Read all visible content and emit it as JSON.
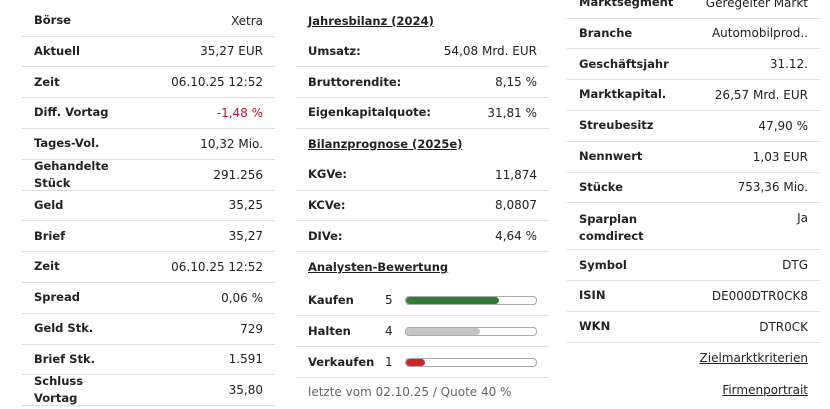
{
  "column1": {
    "rows": [
      {
        "label": "Börse",
        "value": "Xetra"
      },
      {
        "label": "Aktuell",
        "value": "35,27 EUR"
      },
      {
        "label": "Zeit",
        "value": "06.10.25 12:52"
      },
      {
        "label": "Diff. Vortag",
        "value": "-1,48 %",
        "value_color": "#c8102e"
      },
      {
        "label": "Tages-Vol.",
        "value": "10,32 Mio."
      },
      {
        "label": "Gehandelte Stück",
        "value": "291.256"
      },
      {
        "label": "Geld",
        "value": "35,25"
      },
      {
        "label": "Brief",
        "value": "35,27"
      },
      {
        "label": "Zeit",
        "value": "06.10.25 12:52"
      },
      {
        "label": "Spread",
        "value": "0,06 %"
      },
      {
        "label": "Geld Stk.",
        "value": "729"
      },
      {
        "label": "Brief Stk.",
        "value": "1.591"
      },
      {
        "label": "Schluss Vortag",
        "value": "35,80"
      }
    ]
  },
  "column2": {
    "sections": [
      {
        "title": "Jahresbilanz (2024)",
        "rows": [
          {
            "label": "Umsatz:",
            "value": "54,08 Mrd. EUR"
          },
          {
            "label": "Bruttorendite:",
            "value": "8,15 %"
          },
          {
            "label": "Eigenkapitalquote:",
            "value": "31,81 %"
          }
        ]
      },
      {
        "title": "Bilanzprognose (2025e)",
        "rows": [
          {
            "label": "KGVe:",
            "value": "11,874"
          },
          {
            "label": "KCVe:",
            "value": "8,0807"
          },
          {
            "label": "DIVe:",
            "value": "4,64 %"
          }
        ]
      }
    ],
    "analysts": {
      "title": "Analysten-Bewertung",
      "ratings": [
        {
          "label": "Kaufen",
          "count": 5,
          "color": "#2e7d32"
        },
        {
          "label": "Halten",
          "count": 4,
          "color": "#c4c4c4"
        },
        {
          "label": "Verkaufen",
          "count": 1,
          "color": "#c62828"
        }
      ],
      "footnote": "letzte vom 02.10.25 / Quote 40 %"
    }
  },
  "column3": {
    "rows": [
      {
        "label": "Marktsegment",
        "value": "Geregelter Markt"
      },
      {
        "label": "Branche",
        "value": "Automobilprod.."
      },
      {
        "label": "Geschäftsjahr",
        "value": "31.12."
      },
      {
        "label": "Marktkapital.",
        "value": "26,57 Mrd. EUR"
      },
      {
        "label": "Streubesitz",
        "value": "47,90 %"
      },
      {
        "label": "Nennwert",
        "value": "1,03 EUR"
      },
      {
        "label": "Stücke",
        "value": "753,36 Mio."
      },
      {
        "label": "Sparplan comdirect",
        "value": "Ja"
      },
      {
        "label": "Symbol",
        "value": "DTG"
      },
      {
        "label": "ISIN",
        "value": "DE000DTR0CK8"
      },
      {
        "label": "WKN",
        "value": "DTR0CK"
      }
    ],
    "links": [
      "Zielmarktkriterien",
      "Firmenportrait"
    ]
  }
}
